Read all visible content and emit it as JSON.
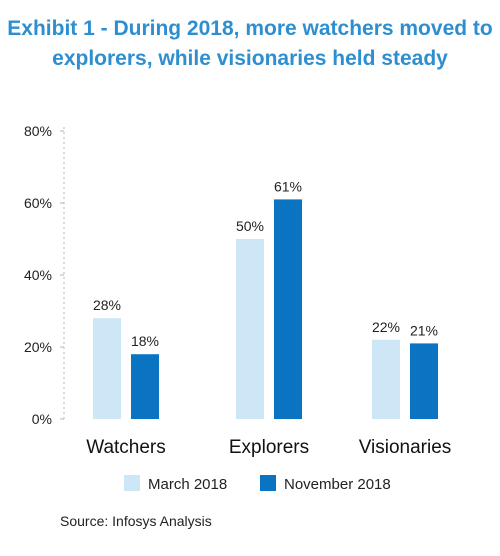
{
  "title_lines": [
    "Exhibit 1 - During 2018, more watchers moved to",
    "explorers, while visionaries held steady"
  ],
  "source": "Source: Infosys Analysis",
  "colors": {
    "march": "#cde7f7",
    "november": "#0b74c2",
    "title": "#2e8fd0"
  },
  "chart_data": {
    "type": "bar",
    "title": "Exhibit 1 - During 2018, more watchers moved to explorers, while visionaries held steady",
    "categories": [
      "Watchers",
      "Explorers",
      "Visionaries"
    ],
    "series": [
      {
        "name": "March 2018",
        "values": [
          28,
          50,
          22
        ],
        "labels": [
          "28%",
          "50%",
          "22%"
        ]
      },
      {
        "name": "November 2018",
        "values": [
          18,
          61,
          21
        ],
        "labels": [
          "18%",
          "61%",
          "21%"
        ]
      }
    ],
    "ylim": [
      0,
      80
    ],
    "yticks": [
      "0%",
      "20%",
      "40%",
      "60%",
      "80%"
    ],
    "grid": false,
    "legend": "bottom",
    "xlabel": "",
    "ylabel": ""
  }
}
